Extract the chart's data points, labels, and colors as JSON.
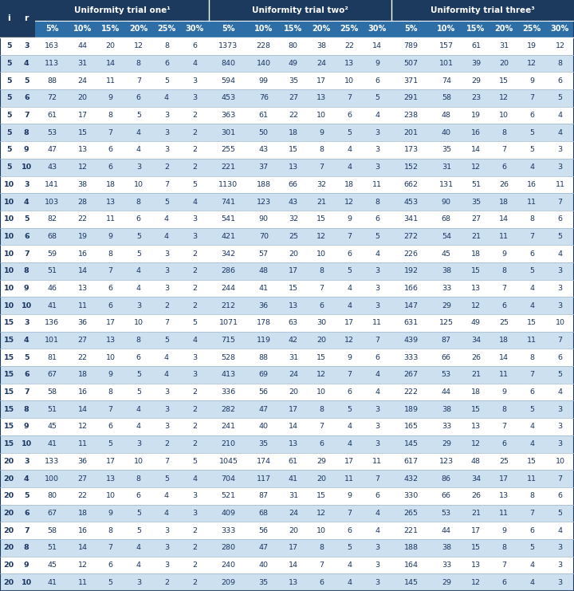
{
  "group_labels": [
    "Uniformity trial one¹",
    "Uniformity trial two²",
    "Uniformity trial three³"
  ],
  "pct_labels": [
    "5%",
    "10%",
    "15%",
    "20%",
    "25%",
    "30%"
  ],
  "rows": [
    [
      5,
      3,
      163,
      44,
      20,
      12,
      8,
      6,
      1373,
      228,
      80,
      38,
      22,
      14,
      789,
      157,
      61,
      31,
      19,
      12
    ],
    [
      5,
      4,
      113,
      31,
      14,
      8,
      6,
      4,
      840,
      140,
      49,
      24,
      13,
      9,
      507,
      101,
      39,
      20,
      12,
      8
    ],
    [
      5,
      5,
      88,
      24,
      11,
      7,
      5,
      3,
      594,
      99,
      35,
      17,
      10,
      6,
      371,
      74,
      29,
      15,
      9,
      6
    ],
    [
      5,
      6,
      72,
      20,
      9,
      6,
      4,
      3,
      453,
      76,
      27,
      13,
      7,
      5,
      291,
      58,
      23,
      12,
      7,
      5
    ],
    [
      5,
      7,
      61,
      17,
      8,
      5,
      3,
      2,
      363,
      61,
      22,
      10,
      6,
      4,
      238,
      48,
      19,
      10,
      6,
      4
    ],
    [
      5,
      8,
      53,
      15,
      7,
      4,
      3,
      2,
      301,
      50,
      18,
      9,
      5,
      3,
      201,
      40,
      16,
      8,
      5,
      4
    ],
    [
      5,
      9,
      47,
      13,
      6,
      4,
      3,
      2,
      255,
      43,
      15,
      8,
      4,
      3,
      173,
      35,
      14,
      7,
      5,
      3
    ],
    [
      5,
      10,
      43,
      12,
      6,
      3,
      2,
      2,
      221,
      37,
      13,
      7,
      4,
      3,
      152,
      31,
      12,
      6,
      4,
      3
    ],
    [
      10,
      3,
      141,
      38,
      18,
      10,
      7,
      5,
      1130,
      188,
      66,
      32,
      18,
      11,
      662,
      131,
      51,
      26,
      16,
      11
    ],
    [
      10,
      4,
      103,
      28,
      13,
      8,
      5,
      4,
      741,
      123,
      43,
      21,
      12,
      8,
      453,
      90,
      35,
      18,
      11,
      7
    ],
    [
      10,
      5,
      82,
      22,
      11,
      6,
      4,
      3,
      541,
      90,
      32,
      15,
      9,
      6,
      341,
      68,
      27,
      14,
      8,
      6
    ],
    [
      10,
      6,
      68,
      19,
      9,
      5,
      4,
      3,
      421,
      70,
      25,
      12,
      7,
      5,
      272,
      54,
      21,
      11,
      7,
      5
    ],
    [
      10,
      7,
      59,
      16,
      8,
      5,
      3,
      2,
      342,
      57,
      20,
      10,
      6,
      4,
      226,
      45,
      18,
      9,
      6,
      4
    ],
    [
      10,
      8,
      51,
      14,
      7,
      4,
      3,
      2,
      286,
      48,
      17,
      8,
      5,
      3,
      192,
      38,
      15,
      8,
      5,
      3
    ],
    [
      10,
      9,
      46,
      13,
      6,
      4,
      3,
      2,
      244,
      41,
      15,
      7,
      4,
      3,
      166,
      33,
      13,
      7,
      4,
      3
    ],
    [
      10,
      10,
      41,
      11,
      6,
      3,
      2,
      2,
      212,
      36,
      13,
      6,
      4,
      3,
      147,
      29,
      12,
      6,
      4,
      3
    ],
    [
      15,
      3,
      136,
      36,
      17,
      10,
      7,
      5,
      1071,
      178,
      63,
      30,
      17,
      11,
      631,
      125,
      49,
      25,
      15,
      10
    ],
    [
      15,
      4,
      101,
      27,
      13,
      8,
      5,
      4,
      715,
      119,
      42,
      20,
      12,
      7,
      439,
      87,
      34,
      18,
      11,
      7
    ],
    [
      15,
      5,
      81,
      22,
      10,
      6,
      4,
      3,
      528,
      88,
      31,
      15,
      9,
      6,
      333,
      66,
      26,
      14,
      8,
      6
    ],
    [
      15,
      6,
      67,
      18,
      9,
      5,
      4,
      3,
      413,
      69,
      24,
      12,
      7,
      4,
      267,
      53,
      21,
      11,
      7,
      5
    ],
    [
      15,
      7,
      58,
      16,
      8,
      5,
      3,
      2,
      336,
      56,
      20,
      10,
      6,
      4,
      222,
      44,
      18,
      9,
      6,
      4
    ],
    [
      15,
      8,
      51,
      14,
      7,
      4,
      3,
      2,
      282,
      47,
      17,
      8,
      5,
      3,
      189,
      38,
      15,
      8,
      5,
      3
    ],
    [
      15,
      9,
      45,
      12,
      6,
      4,
      3,
      2,
      241,
      40,
      14,
      7,
      4,
      3,
      165,
      33,
      13,
      7,
      4,
      3
    ],
    [
      15,
      10,
      41,
      11,
      5,
      3,
      2,
      2,
      210,
      35,
      13,
      6,
      4,
      3,
      145,
      29,
      12,
      6,
      4,
      3
    ],
    [
      20,
      3,
      133,
      36,
      17,
      10,
      7,
      5,
      1045,
      174,
      61,
      29,
      17,
      11,
      617,
      123,
      48,
      25,
      15,
      10
    ],
    [
      20,
      4,
      100,
      27,
      13,
      8,
      5,
      4,
      704,
      117,
      41,
      20,
      11,
      7,
      432,
      86,
      34,
      17,
      11,
      7
    ],
    [
      20,
      5,
      80,
      22,
      10,
      6,
      4,
      3,
      521,
      87,
      31,
      15,
      9,
      6,
      330,
      66,
      26,
      13,
      8,
      6
    ],
    [
      20,
      6,
      67,
      18,
      9,
      5,
      4,
      3,
      409,
      68,
      24,
      12,
      7,
      4,
      265,
      53,
      21,
      11,
      7,
      5
    ],
    [
      20,
      7,
      58,
      16,
      8,
      5,
      3,
      2,
      333,
      56,
      20,
      10,
      6,
      4,
      221,
      44,
      17,
      9,
      6,
      4
    ],
    [
      20,
      8,
      51,
      14,
      7,
      4,
      3,
      2,
      280,
      47,
      17,
      8,
      5,
      3,
      188,
      38,
      15,
      8,
      5,
      3
    ],
    [
      20,
      9,
      45,
      12,
      6,
      4,
      3,
      2,
      240,
      40,
      14,
      7,
      4,
      3,
      164,
      33,
      13,
      7,
      4,
      3
    ],
    [
      20,
      10,
      41,
      11,
      5,
      3,
      2,
      2,
      209,
      35,
      13,
      6,
      4,
      3,
      145,
      29,
      12,
      6,
      4,
      3
    ]
  ],
  "header_dark_bg": "#1b3a5e",
  "header_mid_bg": "#2e6ea6",
  "row_bg_blue": "#cce0f0",
  "row_bg_white": "#ffffff",
  "text_dark": "#1a3560",
  "text_white": "#ffffff",
  "border_color": "#a0b8cc",
  "col_widths_raw": [
    1.7,
    1.7,
    3.2,
    2.7,
    2.7,
    2.7,
    2.7,
    2.7,
    3.8,
    3.0,
    2.7,
    2.7,
    2.7,
    2.7,
    3.8,
    3.0,
    2.7,
    2.7,
    2.7,
    2.7
  ]
}
